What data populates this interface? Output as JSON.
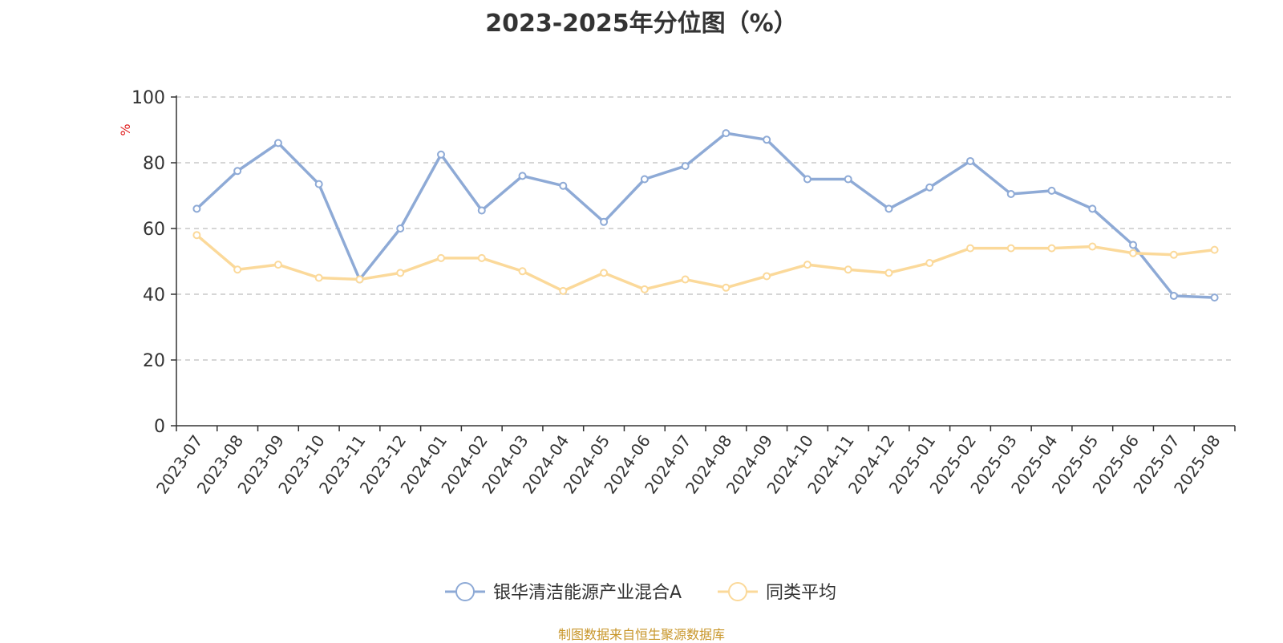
{
  "chart_data": {
    "type": "line",
    "title": "2023-2025年分位图（%）",
    "ylabel": "%",
    "xlabel": "",
    "ylim": [
      0,
      100
    ],
    "yticks": [
      0,
      20,
      40,
      60,
      80,
      100
    ],
    "grid": "horizontal-dashed",
    "legend_position": "bottom-center",
    "categories": [
      "2023-07",
      "2023-08",
      "2023-09",
      "2023-10",
      "2023-11",
      "2023-12",
      "2024-01",
      "2024-02",
      "2024-03",
      "2024-04",
      "2024-05",
      "2024-06",
      "2024-07",
      "2024-08",
      "2024-09",
      "2024-10",
      "2024-11",
      "2024-12",
      "2025-01",
      "2025-02",
      "2025-03",
      "2025-04",
      "2025-05",
      "2025-06",
      "2025-07",
      "2025-08"
    ],
    "series": [
      {
        "name": "银华清洁能源产业混合A",
        "color": "#8eaad6",
        "values": [
          66,
          77.5,
          86,
          73.5,
          44.5,
          60,
          82.5,
          65.5,
          76,
          73,
          62,
          75,
          79,
          89,
          87,
          75,
          75,
          66,
          72.5,
          80.5,
          70.5,
          71.5,
          66,
          55,
          39.5,
          39
        ]
      },
      {
        "name": "同类平均",
        "color": "#fbd99a",
        "values": [
          58,
          47.5,
          49,
          45,
          44.5,
          46.5,
          51,
          51,
          47,
          41,
          46.5,
          41.5,
          44.5,
          42,
          45.5,
          49,
          47.5,
          46.5,
          49.5,
          54,
          54,
          54,
          54.5,
          52.5,
          52,
          53.5
        ]
      }
    ]
  },
  "footer": "制图数据来自恒生聚源数据库"
}
